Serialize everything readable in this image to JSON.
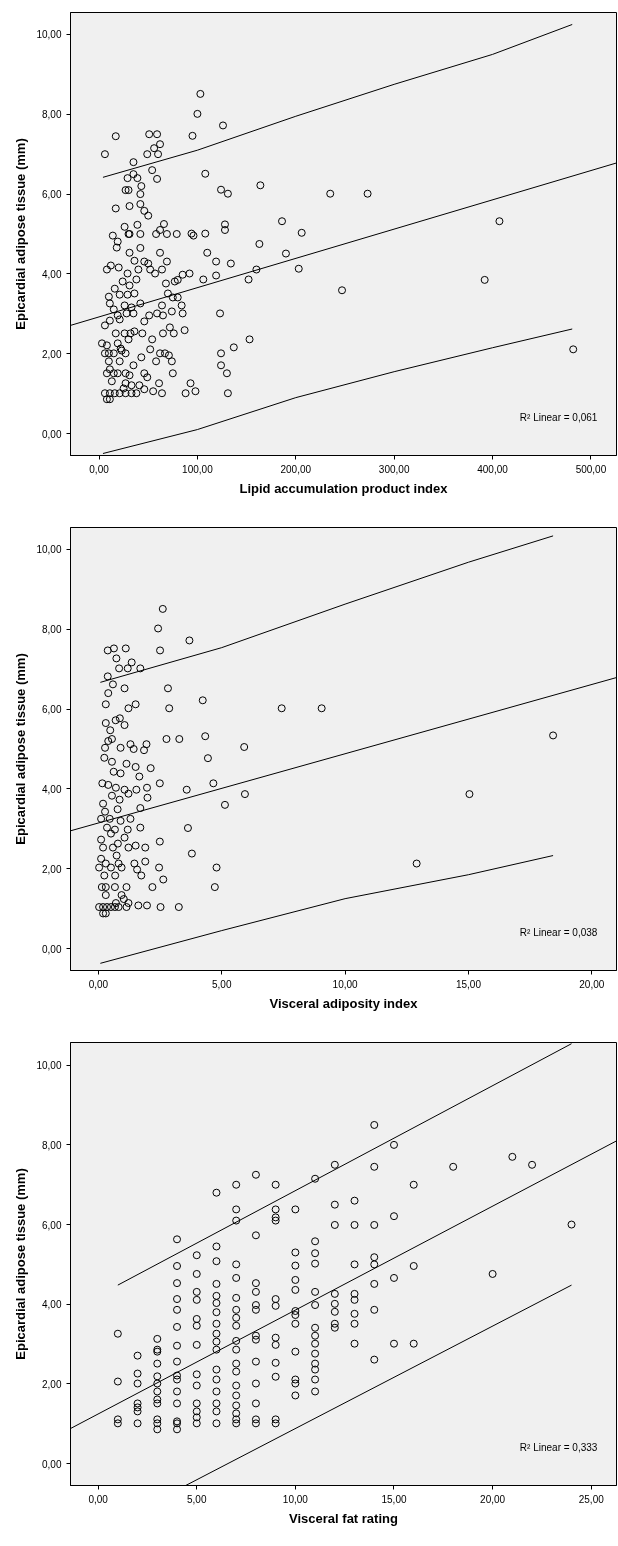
{
  "chart_data": [
    {
      "type": "scatter",
      "xlabel": "Lipid accumulation product index",
      "ylabel": "Epicardial adipose tissue (mm)",
      "xlim": [
        -29,
        526
      ],
      "ylim": [
        -0.55,
        10.55
      ],
      "xticks": [
        {
          "value": 0,
          "label": "0,00"
        },
        {
          "value": 100,
          "label": "100,00"
        },
        {
          "value": 200,
          "label": "200,00"
        },
        {
          "value": 300,
          "label": "300,00"
        },
        {
          "value": 400,
          "label": "400,00"
        },
        {
          "value": 500,
          "label": "500,00"
        }
      ],
      "yticks": [
        {
          "value": 0,
          "label": "0,00"
        },
        {
          "value": 2,
          "label": "2,00"
        },
        {
          "value": 4,
          "label": "4,00"
        },
        {
          "value": 6,
          "label": "6,00"
        },
        {
          "value": 8,
          "label": "8,00"
        },
        {
          "value": 10,
          "label": "10,00"
        }
      ],
      "annotations": [
        "R² Linear = 0,061"
      ],
      "series": [
        {
          "type": "scatter",
          "marker": "circle",
          "color": "#000000",
          "x": [
            6,
            17,
            51,
            59,
            62,
            56,
            49,
            60,
            35,
            54,
            35,
            29,
            39,
            59,
            43,
            27,
            30,
            42,
            17,
            31,
            42,
            46,
            50,
            26,
            14,
            30,
            31,
            39,
            42,
            58,
            62,
            66,
            69,
            79,
            19,
            18,
            31,
            42,
            62,
            36,
            46,
            50,
            69,
            8,
            12,
            20,
            40,
            52,
            64,
            57,
            29,
            24,
            38,
            31,
            16,
            10,
            21,
            29,
            36,
            68,
            77,
            80,
            85,
            92,
            70,
            75,
            80,
            11,
            15,
            26,
            33,
            42,
            64,
            84,
            19,
            28,
            35,
            51,
            59,
            65,
            74,
            85,
            6,
            11,
            21,
            46,
            72,
            17,
            26,
            32,
            36,
            44,
            65,
            76,
            87,
            30,
            54,
            3,
            8,
            19,
            6,
            10,
            15,
            23,
            27,
            22,
            52,
            62,
            67,
            71,
            10,
            21,
            43,
            58,
            74,
            8,
            15,
            19,
            27,
            46,
            75,
            35,
            11,
            31,
            49,
            13,
            27,
            61,
            6,
            11,
            16,
            21,
            27,
            33,
            38,
            8,
            11,
            25,
            33,
            41,
            46,
            55,
            64,
            88,
            93,
            98,
            95,
            100,
            103,
            126,
            108,
            124,
            131,
            164,
            235,
            273,
            94,
            96,
            108,
            128,
            128,
            186,
            206,
            407,
            110,
            119,
            134,
            163,
            190,
            119,
            106,
            152,
            160,
            203,
            247,
            392,
            123,
            137,
            153,
            124,
            124,
            130,
            131,
            482
          ],
          "values": [
            7.0,
            7.45,
            7.5,
            7.5,
            7.25,
            7.15,
            7.0,
            7.0,
            6.8,
            6.6,
            6.5,
            6.4,
            6.4,
            6.38,
            6.2,
            6.1,
            6.1,
            6.0,
            5.64,
            5.7,
            5.75,
            5.58,
            5.46,
            5.18,
            4.96,
            5.0,
            5.0,
            5.23,
            5.0,
            5.0,
            5.1,
            5.25,
            5.0,
            5.0,
            4.81,
            4.66,
            4.53,
            4.65,
            4.53,
            4.33,
            4.31,
            4.26,
            4.31,
            4.11,
            4.21,
            4.16,
            4.11,
            4.11,
            4.11,
            4.01,
            4.01,
            3.81,
            3.86,
            3.71,
            3.63,
            3.43,
            3.48,
            3.48,
            3.51,
            3.76,
            3.81,
            3.85,
            3.98,
            4.01,
            3.51,
            3.41,
            3.41,
            3.26,
            3.11,
            3.21,
            3.16,
            3.26,
            3.21,
            3.21,
            2.96,
            3.01,
            3.01,
            2.96,
            3.01,
            2.96,
            3.06,
            3.01,
            2.71,
            2.83,
            2.86,
            2.81,
            2.66,
            2.51,
            2.51,
            2.51,
            2.56,
            2.51,
            2.51,
            2.51,
            2.59,
            2.36,
            2.36,
            2.26,
            2.21,
            2.26,
            2.01,
            2.01,
            2.01,
            2.08,
            2.01,
            2.13,
            2.11,
            2.01,
            2.01,
            1.96,
            1.81,
            1.81,
            1.91,
            1.81,
            1.81,
            1.51,
            1.51,
            1.51,
            1.51,
            1.51,
            1.51,
            1.71,
            1.61,
            1.46,
            1.41,
            1.31,
            1.26,
            1.26,
            1.01,
            1.01,
            1.01,
            1.01,
            1.01,
            1.01,
            1.01,
            0.86,
            0.86,
            1.13,
            1.21,
            1.21,
            1.11,
            1.06,
            1.01,
            1.01,
            1.26,
            1.06,
            7.46,
            8.01,
            8.51,
            7.72,
            6.51,
            6.11,
            6.01,
            6.22,
            6.01,
            6.01,
            5.01,
            4.96,
            5.01,
            5.24,
            5.1,
            5.32,
            5.03,
            5.32,
            4.53,
            4.31,
            4.26,
            4.75,
            4.51,
            3.96,
            3.86,
            3.86,
            4.11,
            4.13,
            3.59,
            3.85,
            3.01,
            2.16,
            2.36,
            2.01,
            1.71,
            1.51,
            1.01,
            2.11
          ]
        },
        {
          "type": "line",
          "marker": "none",
          "color": "#000000",
          "x": [
            -29,
            526
          ],
          "values": [
            2.71,
            6.78
          ]
        },
        {
          "type": "line",
          "marker": "none",
          "color": "#000000",
          "x": [
            4,
            100,
            200,
            300,
            400,
            481
          ],
          "values": [
            6.42,
            7.1,
            7.95,
            8.75,
            9.5,
            10.25
          ]
        },
        {
          "type": "line",
          "marker": "none",
          "color": "#000000",
          "x": [
            4,
            100,
            200,
            300,
            400,
            481
          ],
          "values": [
            -0.5,
            0.1,
            0.9,
            1.55,
            2.15,
            2.62
          ]
        }
      ]
    },
    {
      "type": "scatter",
      "xlabel": "Visceral adiposity index",
      "ylabel": "Epicardial adipose tissue (mm)",
      "xlim": [
        -1.13,
        21.0
      ],
      "ylim": [
        -0.55,
        10.55
      ],
      "xticks": [
        {
          "value": 0,
          "label": "0,00"
        },
        {
          "value": 5,
          "label": "5,00"
        },
        {
          "value": 10,
          "label": "10,00"
        },
        {
          "value": 15,
          "label": "15,00"
        },
        {
          "value": 20,
          "label": "20,00"
        }
      ],
      "yticks": [
        {
          "value": 0,
          "label": "0,00"
        },
        {
          "value": 2,
          "label": "2,00"
        },
        {
          "value": 4,
          "label": "4,00"
        },
        {
          "value": 6,
          "label": "6,00"
        },
        {
          "value": 8,
          "label": "8,00"
        },
        {
          "value": 10,
          "label": "10,00"
        }
      ],
      "annotations": [
        "R² Linear = 0,038"
      ],
      "series": [
        {
          "type": "scatter",
          "marker": "circle",
          "color": "#000000",
          "x": [
            2.61,
            2.42,
            3.69,
            2.5,
            4.23,
            2.82,
            2.87,
            7.43,
            9.05,
            2.76,
            3.28,
            4.33,
            5.91,
            18.43,
            4.44,
            2.49,
            3.58,
            4.66,
            5.94,
            5.13,
            15.04,
            3.63,
            3.79,
            2.49,
            2.46,
            4.79,
            4.72,
            12.9,
            2.63,
            2.19,
            2.52,
            3.26,
            1.97,
            1.62,
            0.38,
            0.63,
            1.11,
            0.73,
            1.35,
            0.84,
            1.19,
            1.7,
            0.38,
            0.59,
            1.06,
            0.4,
            0.3,
            1.51,
            1.22,
            0.3,
            0.87,
            0.7,
            1.06,
            0.48,
            0.4,
            0.55,
            0.27,
            0.9,
            1.3,
            1.43,
            1.95,
            1.85,
            0.24,
            0.55,
            1.14,
            1.51,
            2.12,
            0.62,
            0.9,
            1.66,
            0.16,
            0.4,
            0.71,
            1.06,
            1.54,
            1.97,
            0.55,
            1.22,
            0.86,
            1.99,
            0.19,
            0.78,
            1.7,
            0.27,
            0.11,
            0.46,
            0.9,
            1.3,
            1.7,
            0.35,
            0.67,
            1.19,
            0.11,
            0.51,
            1.06,
            0.79,
            0.19,
            0.59,
            1.22,
            1.51,
            1.9,
            0.74,
            0.11,
            0.3,
            0.82,
            1.46,
            1.9,
            0.03,
            0.51,
            0.94,
            1.57,
            0.24,
            0.68,
            1.74,
            0.14,
            0.3,
            0.67,
            1.14,
            0.94,
            0.3,
            1.03,
            0.71,
            1.22,
            0.03,
            0.19,
            0.35,
            0.51,
            0.67,
            0.82,
            1.14,
            0.19,
            0.3
          ],
          "values": [
            8.51,
            8.02,
            7.72,
            7.47,
            6.22,
            6.52,
            6.02,
            6.02,
            6.02,
            5.25,
            5.25,
            5.32,
            5.05,
            5.34,
            4.77,
            4.14,
            3.98,
            4.14,
            3.87,
            3.6,
            3.87,
            3.02,
            2.38,
            2.68,
            2.03,
            2.03,
            1.54,
            2.13,
            1.73,
            1.54,
            1.04,
            1.04,
            1.08,
            1.08,
            7.47,
            7.52,
            7.52,
            7.27,
            7.17,
            7.02,
            7.02,
            7.02,
            6.82,
            6.62,
            6.52,
            6.4,
            6.12,
            6.12,
            6.02,
            5.65,
            5.77,
            5.72,
            5.6,
            5.47,
            5.2,
            5.25,
            5.03,
            5.03,
            5.12,
            5.0,
            5.12,
            4.97,
            4.78,
            4.68,
            4.63,
            4.55,
            4.52,
            4.43,
            4.39,
            4.31,
            4.14,
            4.1,
            4.03,
            3.98,
            3.98,
            4.03,
            3.83,
            3.88,
            3.73,
            3.78,
            3.63,
            3.49,
            3.52,
            3.43,
            3.25,
            3.25,
            3.2,
            3.25,
            3.03,
            3.03,
            2.98,
            2.98,
            2.73,
            2.88,
            2.78,
            2.63,
            2.53,
            2.53,
            2.53,
            2.58,
            2.53,
            2.33,
            2.25,
            2.13,
            2.13,
            2.13,
            2.18,
            2.03,
            2.03,
            2.03,
            1.98,
            1.83,
            1.83,
            1.83,
            1.54,
            1.54,
            1.54,
            1.54,
            1.34,
            1.34,
            1.24,
            1.14,
            1.14,
            1.04,
            1.04,
            1.04,
            1.04,
            1.04,
            1.04,
            1.04,
            0.88,
            0.88
          ]
        },
        {
          "type": "line",
          "marker": "none",
          "color": "#000000",
          "x": [
            -1.13,
            21.0
          ],
          "values": [
            2.95,
            6.79
          ]
        },
        {
          "type": "line",
          "marker": "none",
          "color": "#000000",
          "x": [
            0.08,
            5,
            10,
            15,
            18.43
          ],
          "values": [
            6.67,
            7.54,
            8.63,
            9.68,
            10.34
          ]
        },
        {
          "type": "line",
          "marker": "none",
          "color": "#000000",
          "x": [
            0.08,
            5,
            10,
            15,
            18.43
          ],
          "values": [
            -0.37,
            0.45,
            1.25,
            1.85,
            2.33
          ]
        }
      ]
    },
    {
      "type": "scatter",
      "xlabel": "Visceral fat rating",
      "ylabel": "Epicardial adipose tissue (mm)",
      "xlim": [
        -1.4,
        26.28
      ],
      "ylim": [
        -0.55,
        10.57
      ],
      "xticks": [
        {
          "value": 0,
          "label": "0,00"
        },
        {
          "value": 5,
          "label": "5,00"
        },
        {
          "value": 10,
          "label": "10,00"
        },
        {
          "value": 15,
          "label": "15,00"
        },
        {
          "value": 20,
          "label": "20,00"
        },
        {
          "value": 25,
          "label": "25,00"
        }
      ],
      "yticks": [
        {
          "value": 0,
          "label": "0,00"
        },
        {
          "value": 2,
          "label": "2,00"
        },
        {
          "value": 4,
          "label": "4,00"
        },
        {
          "value": 6,
          "label": "6,00"
        },
        {
          "value": 8,
          "label": "8,00"
        },
        {
          "value": 10,
          "label": "10,00"
        }
      ],
      "annotations": [
        "R² Linear = 0,333"
      ],
      "series": [
        {
          "type": "scatter",
          "marker": "circle",
          "color": "#000000",
          "x": [
            1,
            1,
            1,
            1,
            2,
            2,
            2,
            2,
            2,
            2,
            2,
            3,
            3,
            3,
            3,
            3,
            3,
            3,
            3,
            3,
            3,
            3,
            3,
            4,
            4,
            4,
            4,
            4,
            4,
            4,
            4,
            4,
            4,
            4,
            4,
            4,
            4,
            4,
            5,
            5,
            5,
            5,
            5,
            5,
            5,
            5,
            5,
            5,
            5,
            5,
            5,
            6,
            6,
            6,
            6,
            6,
            6,
            6,
            6,
            6,
            6,
            6,
            6,
            6,
            6,
            6,
            6,
            6,
            7,
            7,
            7,
            7,
            7,
            7,
            7,
            7,
            7,
            7,
            7,
            7,
            7,
            7,
            7,
            7,
            7,
            7,
            7,
            8,
            8,
            8,
            8,
            8,
            8,
            8,
            8,
            8,
            8,
            8,
            8,
            8,
            9,
            9,
            9,
            9,
            9,
            9,
            9,
            9,
            9,
            9,
            9,
            9,
            10,
            10,
            10,
            10,
            10,
            10,
            10,
            10,
            10,
            10,
            10,
            10,
            11,
            11,
            11,
            11,
            11,
            11,
            11,
            11,
            11,
            11,
            11,
            11,
            11,
            11,
            12,
            12,
            12,
            12,
            12,
            12,
            12,
            12,
            13,
            13,
            13,
            13,
            13,
            13,
            13,
            13,
            14,
            14,
            14,
            14,
            14,
            14,
            14,
            14,
            15,
            15,
            15,
            15,
            16,
            16,
            16,
            18,
            20,
            21,
            22,
            24
          ],
          "values": [
            3.26,
            2.06,
            1.11,
            1.01,
            2.71,
            2.26,
            2.01,
            1.51,
            1.41,
            1.31,
            1.01,
            3.13,
            2.86,
            2.81,
            2.51,
            2.19,
            2.01,
            1.81,
            1.61,
            1.51,
            1.11,
            1.01,
            0.86,
            5.63,
            4.96,
            4.53,
            4.13,
            3.86,
            3.43,
            2.96,
            2.56,
            2.21,
            2.11,
            1.81,
            1.51,
            1.06,
            1.01,
            0.86,
            5.23,
            4.76,
            4.31,
            4.11,
            3.63,
            3.46,
            2.98,
            2.24,
            1.96,
            1.51,
            1.31,
            1.16,
            1.01,
            6.8,
            5.45,
            5.08,
            4.51,
            4.21,
            4.03,
            3.8,
            3.51,
            3.26,
            3.06,
            2.86,
            2.36,
            2.11,
            1.81,
            1.51,
            1.31,
            1.01,
            7.0,
            6.38,
            6.1,
            5.0,
            4.66,
            4.16,
            3.86,
            3.66,
            3.46,
            3.08,
            2.86,
            2.51,
            2.31,
            1.96,
            1.71,
            1.46,
            1.26,
            1.11,
            1.01,
            7.25,
            5.73,
            4.53,
            4.31,
            3.98,
            3.86,
            3.21,
            3.11,
            2.56,
            2.01,
            1.51,
            1.11,
            1.01,
            7.0,
            6.38,
            6.18,
            6.1,
            4.13,
            3.96,
            3.16,
            2.98,
            2.53,
            2.18,
            1.11,
            1.01,
            6.38,
            5.3,
            4.97,
            4.61,
            4.36,
            3.83,
            3.73,
            3.51,
            2.81,
            2.11,
            2.01,
            1.71,
            7.15,
            5.58,
            5.28,
            5.02,
            4.31,
            3.98,
            3.41,
            3.21,
            3.01,
            2.76,
            2.51,
            2.36,
            2.11,
            1.81,
            7.5,
            6.5,
            5.99,
            4.26,
            4.01,
            3.81,
            3.51,
            3.41,
            6.6,
            5.99,
            5.0,
            4.26,
            4.11,
            3.76,
            3.51,
            3.01,
            8.5,
            7.45,
            5.99,
            5.18,
            5.0,
            4.51,
            3.86,
            2.61,
            8.0,
            6.21,
            4.66,
            3.01,
            7.0,
            4.96,
            3.01,
            7.45,
            4.76,
            7.7,
            7.5,
            6.0
          ]
        },
        {
          "type": "line",
          "marker": "none",
          "color": "#000000",
          "x": [
            -1.4,
            26.28
          ],
          "values": [
            0.88,
            8.1
          ]
        },
        {
          "type": "line",
          "marker": "none",
          "color": "#000000",
          "x": [
            1,
            24
          ],
          "values": [
            4.48,
            10.54
          ]
        },
        {
          "type": "line",
          "marker": "none",
          "color": "#000000",
          "x": [
            4.44,
            24
          ],
          "values": [
            -0.55,
            4.48
          ]
        }
      ]
    }
  ]
}
